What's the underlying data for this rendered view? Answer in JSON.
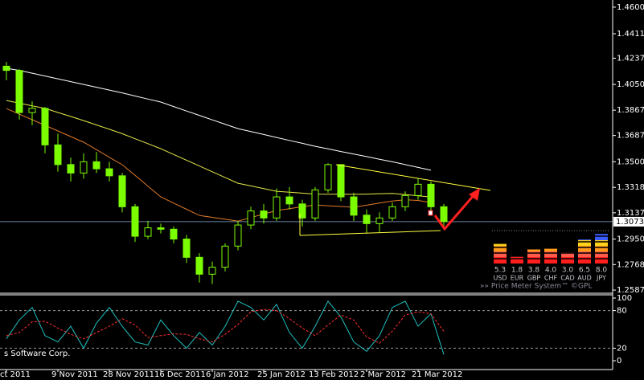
{
  "chart_data": {
    "type": "candlestick",
    "categories": [
      "ct 2011",
      null,
      null,
      null,
      "9 Nov 2011",
      null,
      null,
      null,
      "28 Nov 2011",
      null,
      null,
      null,
      "16 Dec 2011",
      null,
      null,
      null,
      "6 Jan 2012",
      null,
      null,
      null,
      "25 Jan 2012",
      null,
      null,
      null,
      "13 Feb 2012",
      null,
      null,
      null,
      "2 Mar 2012",
      null,
      null,
      null,
      "21 Mar 2012",
      null,
      null
    ],
    "open": [
      1.418,
      1.415,
      1.385,
      1.388,
      1.362,
      1.348,
      1.342,
      1.35,
      1.345,
      1.34,
      1.318,
      1.297,
      1.303,
      1.302,
      1.295,
      1.282,
      1.27,
      1.275,
      1.29,
      1.305,
      1.315,
      1.31,
      1.325,
      1.32,
      1.31,
      1.33,
      1.348,
      1.325,
      1.312,
      1.306,
      1.31,
      1.318,
      1.326,
      1.334,
      1.318
    ],
    "high": [
      1.421,
      1.416,
      1.393,
      1.389,
      1.37,
      1.353,
      1.356,
      1.357,
      1.35,
      1.342,
      1.32,
      1.308,
      1.306,
      1.304,
      1.298,
      1.285,
      1.279,
      1.292,
      1.308,
      1.318,
      1.32,
      1.331,
      1.332,
      1.323,
      1.332,
      1.349,
      1.348,
      1.328,
      1.316,
      1.314,
      1.321,
      1.329,
      1.338,
      1.336,
      1.32
    ],
    "low": [
      1.408,
      1.38,
      1.376,
      1.356,
      1.343,
      1.336,
      1.338,
      1.342,
      1.336,
      1.314,
      1.293,
      1.295,
      1.299,
      1.292,
      1.278,
      1.264,
      1.263,
      1.272,
      1.287,
      1.302,
      1.306,
      1.308,
      1.316,
      1.304,
      1.308,
      1.328,
      1.322,
      1.308,
      1.299,
      1.3,
      1.308,
      1.315,
      1.323,
      1.315,
      1.304
    ],
    "close": [
      1.415,
      1.385,
      1.388,
      1.362,
      1.348,
      1.342,
      1.35,
      1.345,
      1.34,
      1.318,
      1.297,
      1.303,
      1.302,
      1.295,
      1.282,
      1.27,
      1.275,
      1.29,
      1.305,
      1.315,
      1.31,
      1.325,
      1.32,
      1.31,
      1.33,
      1.348,
      1.325,
      1.312,
      1.306,
      1.31,
      1.318,
      1.326,
      1.334,
      1.318,
      1.30737
    ],
    "color": "#7cfc00",
    "ylim": [
      1.2576,
      1.4651
    ],
    "yticks": [
      {
        "value": 1.46,
        "label": "1.46000"
      },
      {
        "value": 1.4411,
        "label": "1.44110"
      },
      {
        "value": 1.4237,
        "label": "1.42370"
      },
      {
        "value": 1.405,
        "label": "1.40500"
      },
      {
        "value": 1.3867,
        "label": "1.38670"
      },
      {
        "value": 1.3687,
        "label": "1.36870"
      },
      {
        "value": 1.35,
        "label": "1.35000"
      },
      {
        "value": 1.3318,
        "label": "1.33180"
      },
      {
        "value": 1.3137,
        "label": "1.31370"
      },
      {
        "value": 1.295,
        "label": "1.29500"
      },
      {
        "value": 1.27685,
        "label": "1.27685"
      },
      {
        "value": 1.2587,
        "label": "1.25870"
      }
    ],
    "last_price": {
      "value": 1.30737,
      "label": "1.30737"
    },
    "moving_averages": [
      {
        "color": "#ffffff",
        "values": [
          1.4165,
          1.415,
          1.413,
          1.411,
          1.409,
          1.407,
          1.405,
          1.403,
          1.401,
          1.399,
          1.3968,
          1.3946,
          1.3925,
          1.3893,
          1.3861,
          1.383,
          1.3798,
          1.3767,
          1.3736,
          1.3715,
          1.3694,
          1.3673,
          1.3652,
          1.3631,
          1.361,
          1.3592,
          1.3573,
          1.3555,
          1.3537,
          1.3518,
          1.35,
          1.348,
          1.346,
          1.344,
          null
        ]
      },
      {
        "color": "#e8e84a",
        "values": [
          1.3936,
          1.3917,
          1.3898,
          1.388,
          1.3851,
          1.3822,
          1.3793,
          1.3762,
          1.3731,
          1.37,
          1.3664,
          1.3629,
          1.3593,
          1.3552,
          1.3511,
          1.347,
          1.3429,
          1.3388,
          1.3347,
          1.3328,
          1.3309,
          1.329,
          1.3283,
          1.3277,
          1.327,
          1.3269,
          1.3269,
          1.3268,
          1.327,
          1.3273,
          1.3275,
          1.3267,
          1.3258,
          1.325,
          null
        ]
      },
      {
        "color": "#e07a2a",
        "values": [
          1.3879,
          1.3839,
          1.3799,
          1.3759,
          1.3719,
          1.3679,
          1.3639,
          1.3586,
          1.3532,
          1.3479,
          1.3403,
          1.3326,
          1.325,
          1.3206,
          1.3162,
          1.3118,
          1.3105,
          1.3091,
          1.3078,
          1.3103,
          1.3128,
          1.3153,
          1.3166,
          1.318,
          1.3193,
          1.3187,
          1.3182,
          1.3176,
          1.3191,
          1.3206,
          1.3221,
          1.323,
          1.3225,
          1.321,
          null
        ]
      }
    ],
    "indicator": {
      "type": "line",
      "ylim": [
        -14.1,
        106.4
      ],
      "yticks": [
        100,
        80,
        20,
        0
      ],
      "levels": [
        80,
        20
      ],
      "series": [
        {
          "color": "#20c0c0",
          "values": [
            35,
            65,
            85,
            40,
            30,
            55,
            20,
            60,
            85,
            55,
            30,
            25,
            65,
            40,
            20,
            45,
            25,
            55,
            95,
            85,
            65,
            90,
            45,
            20,
            55,
            95,
            70,
            30,
            15,
            40,
            85,
            95,
            55,
            75,
            10
          ]
        },
        {
          "color": "#ff3030",
          "values": [
            40,
            45,
            62,
            63,
            52,
            42,
            35,
            45,
            55,
            67,
            57,
            37,
            40,
            43,
            42,
            35,
            30,
            42,
            58,
            78,
            82,
            80,
            67,
            52,
            40,
            57,
            73,
            65,
            38,
            28,
            47,
            73,
            78,
            75,
            47
          ]
        }
      ]
    },
    "watermark": "s Software Corp."
  },
  "price_meter": {
    "title": "»» Price Meter System™ ©GPL",
    "currencies": [
      "USD",
      "EUR",
      "GBP",
      "CHF",
      "CAD",
      "AUD",
      "JPY"
    ],
    "values": [
      5.3,
      1.8,
      3.8,
      4.0,
      3.0,
      6.5,
      8.0
    ],
    "value_labels": [
      "5.3",
      "1.8",
      "3.8",
      "4.0",
      "3.0",
      "6.5",
      "8.0"
    ]
  }
}
